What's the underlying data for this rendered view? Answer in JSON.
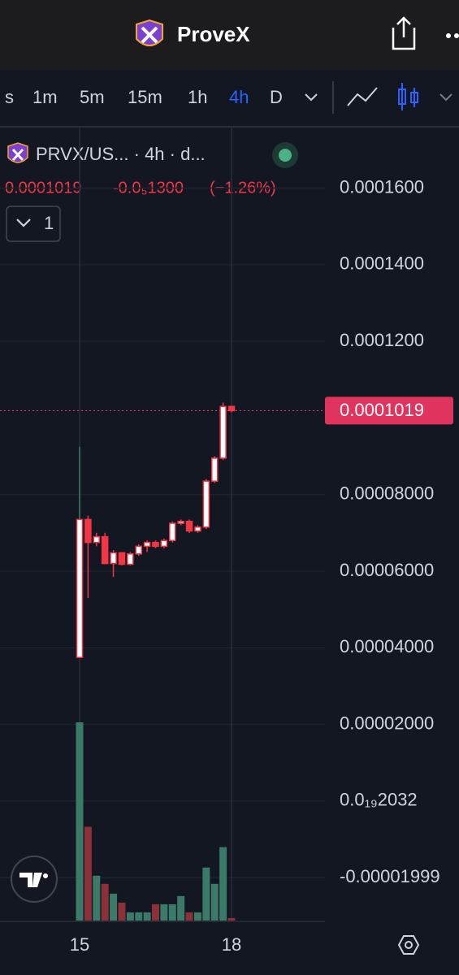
{
  "header": {
    "title": "ProveX"
  },
  "toolbar": {
    "intervals": [
      "s",
      "1m",
      "5m",
      "15m",
      "1h",
      "4h",
      "D"
    ],
    "selected_index": 5
  },
  "chart_data": {
    "type": "candlestick",
    "symbol": "PRVX/US... · 4h · d...",
    "change": "-0.0₅1300",
    "change_percent": "(−1.26%)",
    "indicator_count": "1",
    "last_price": 0.0001019,
    "categories": [
      "15",
      null,
      null,
      null,
      null,
      null,
      null,
      null,
      null,
      null,
      null,
      null,
      null,
      null,
      null,
      null,
      null,
      null,
      "18"
    ],
    "open": [
      3.75e-05,
      7.35e-05,
      6.75e-05,
      6.9e-05,
      6.2e-05,
      6.48e-05,
      6.18e-05,
      6.45e-05,
      6.65e-05,
      6.75e-05,
      6.65e-05,
      6.8e-05,
      7.25e-05,
      7.3e-05,
      7.05e-05,
      7.15e-05,
      8.35e-05,
      8.95e-05,
      0.000103
    ],
    "high": [
      9.25e-05,
      7.45e-05,
      7e-05,
      7e-05,
      6.55e-05,
      6.5e-05,
      6.5e-05,
      6.7e-05,
      6.8e-05,
      6.8e-05,
      6.85e-05,
      7.3e-05,
      7.35e-05,
      7.35e-05,
      7.2e-05,
      8.4e-05,
      9e-05,
      0.000104,
      0.000103
    ],
    "low": [
      3.75e-05,
      5.3e-05,
      6.65e-05,
      6.18e-05,
      5.85e-05,
      6.15e-05,
      6.15e-05,
      6.4e-05,
      6.5e-05,
      6.6e-05,
      6.6e-05,
      6.75e-05,
      7.2e-05,
      7e-05,
      7e-05,
      7.1e-05,
      8.3e-05,
      8.9e-05,
      0.0001015
    ],
    "close": [
      7.35e-05,
      6.75e-05,
      6.9e-05,
      6.2e-05,
      6.48e-05,
      6.18e-05,
      6.45e-05,
      6.65e-05,
      6.75e-05,
      6.65e-05,
      6.8e-05,
      7.25e-05,
      7.3e-05,
      7.05e-05,
      7.15e-05,
      8.35e-05,
      8.95e-05,
      0.000103,
      0.0001019
    ],
    "volume": [
      243,
      115,
      55,
      45,
      33,
      22,
      10,
      10,
      10,
      20,
      20,
      20,
      30,
      10,
      10,
      65,
      45,
      90,
      3
    ],
    "ylim": [
      -3.14e-05,
      0.000176
    ],
    "yticks": [
      {
        "value": 0.00016,
        "label": "0.0001600"
      },
      {
        "value": 0.00014,
        "label": "0.0001400"
      },
      {
        "value": 0.00012,
        "label": "0.0001200"
      },
      {
        "value": 8e-05,
        "label": "0.00008000"
      },
      {
        "value": 6e-05,
        "label": "0.00006000"
      },
      {
        "value": 4e-05,
        "label": "0.00004000"
      },
      {
        "value": 2e-05,
        "label": "0.00002000"
      },
      {
        "value": 2.032e-20,
        "label": "0.0₁₉2032"
      },
      {
        "value": -1.999e-05,
        "label": "-0.00001999"
      }
    ],
    "grid": true,
    "up_color": "#ffffff",
    "down_color": "#f23645",
    "border_color": "#f23645",
    "volume_up_color": "#3b7a69",
    "volume_down_color": "#8c3039",
    "price_label_color": "#e0345e"
  }
}
